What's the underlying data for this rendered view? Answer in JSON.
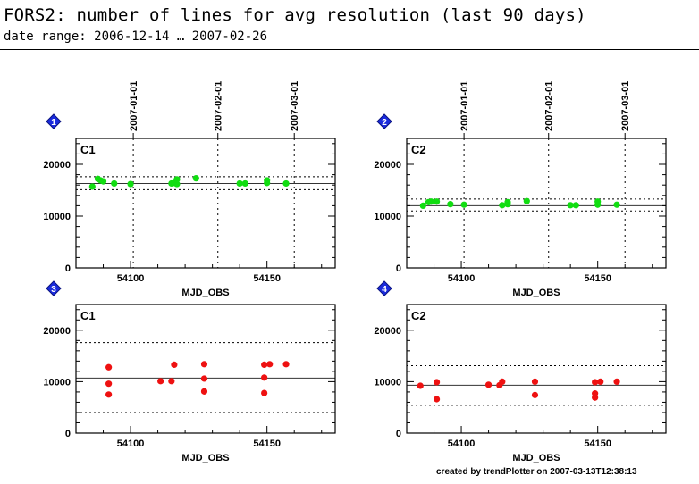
{
  "title": "FORS2: number of lines for avg resolution (last 90 days)",
  "subtitle": "date range: 2006-12-14 … 2007-02-26",
  "footer": "created by trendPlotter on 2007-03-13T12:38:13",
  "colors": {
    "green": "#11dd11",
    "red": "#ee1111",
    "marker": "#1a2bdd"
  },
  "chart_data": [
    {
      "type": "scatter",
      "panel_number": "1",
      "label": "C1",
      "color": "green",
      "xlabel": "MJD_OBS",
      "xlim": [
        54080,
        54175
      ],
      "ylim": [
        0,
        25000
      ],
      "xticks": [
        "54100",
        "54150"
      ],
      "yticks": [
        "0",
        "10000",
        "20000"
      ],
      "date_marks": [
        {
          "x": 54101,
          "label": "2007-01-01"
        },
        {
          "x": 54132,
          "label": "2007-02-01"
        },
        {
          "x": 54160,
          "label": "2007-03-01"
        }
      ],
      "mean": 16300,
      "lower": 15100,
      "upper": 17600,
      "points": [
        [
          54086,
          15700
        ],
        [
          54088,
          17200
        ],
        [
          54089,
          16900
        ],
        [
          54090,
          16700
        ],
        [
          54094,
          16300
        ],
        [
          54100,
          16200
        ],
        [
          54115,
          16300
        ],
        [
          54116,
          16400
        ],
        [
          54117,
          17100
        ],
        [
          54117,
          16200
        ],
        [
          54124,
          17300
        ],
        [
          54140,
          16300
        ],
        [
          54142,
          16300
        ],
        [
          54150,
          16400
        ],
        [
          54150,
          16900
        ],
        [
          54157,
          16300
        ]
      ]
    },
    {
      "type": "scatter",
      "panel_number": "2",
      "label": "C2",
      "color": "green",
      "xlabel": "MJD_OBS",
      "xlim": [
        54080,
        54175
      ],
      "ylim": [
        0,
        25000
      ],
      "xticks": [
        "54100",
        "54150"
      ],
      "yticks": [
        "0",
        "10000",
        "20000"
      ],
      "date_marks": [
        {
          "x": 54101,
          "label": "2007-01-01"
        },
        {
          "x": 54132,
          "label": "2007-02-01"
        },
        {
          "x": 54160,
          "label": "2007-03-01"
        }
      ],
      "mean": 12000,
      "lower": 11000,
      "upper": 13300,
      "points": [
        [
          54086,
          12000
        ],
        [
          54088,
          12700
        ],
        [
          54089,
          12800
        ],
        [
          54091,
          12800
        ],
        [
          54096,
          12300
        ],
        [
          54101,
          12200
        ],
        [
          54115,
          12100
        ],
        [
          54117,
          12300
        ],
        [
          54117,
          12700
        ],
        [
          54124,
          12900
        ],
        [
          54140,
          12100
        ],
        [
          54142,
          12100
        ],
        [
          54150,
          12200
        ],
        [
          54150,
          12800
        ],
        [
          54157,
          12200
        ]
      ]
    },
    {
      "type": "scatter",
      "panel_number": "3",
      "label": "C1",
      "color": "red",
      "xlabel": "MJD_OBS",
      "xlim": [
        54080,
        54175
      ],
      "ylim": [
        0,
        25000
      ],
      "xticks": [
        "54100",
        "54150"
      ],
      "yticks": [
        "0",
        "10000",
        "20000"
      ],
      "mean": 10700,
      "lower": 4000,
      "upper": 17600,
      "points": [
        [
          54092,
          12800
        ],
        [
          54092,
          9600
        ],
        [
          54092,
          7500
        ],
        [
          54111,
          10100
        ],
        [
          54115,
          10100
        ],
        [
          54116,
          13300
        ],
        [
          54127,
          13400
        ],
        [
          54127,
          10600
        ],
        [
          54127,
          8100
        ],
        [
          54149,
          13300
        ],
        [
          54149,
          10800
        ],
        [
          54149,
          7800
        ],
        [
          54151,
          13400
        ],
        [
          54157,
          13400
        ]
      ]
    },
    {
      "type": "scatter",
      "panel_number": "4",
      "label": "C2",
      "color": "red",
      "xlabel": "MJD_OBS",
      "xlim": [
        54080,
        54175
      ],
      "ylim": [
        0,
        25000
      ],
      "xticks": [
        "54100",
        "54150"
      ],
      "yticks": [
        "0",
        "10000",
        "20000"
      ],
      "mean": 9300,
      "lower": 5400,
      "upper": 13100,
      "points": [
        [
          54085,
          9200
        ],
        [
          54091,
          9900
        ],
        [
          54091,
          6600
        ],
        [
          54110,
          9400
        ],
        [
          54114,
          9300
        ],
        [
          54115,
          10000
        ],
        [
          54127,
          10000
        ],
        [
          54127,
          7400
        ],
        [
          54149,
          9900
        ],
        [
          54149,
          7700
        ],
        [
          54149,
          6900
        ],
        [
          54151,
          10000
        ],
        [
          54157,
          10000
        ]
      ]
    }
  ]
}
